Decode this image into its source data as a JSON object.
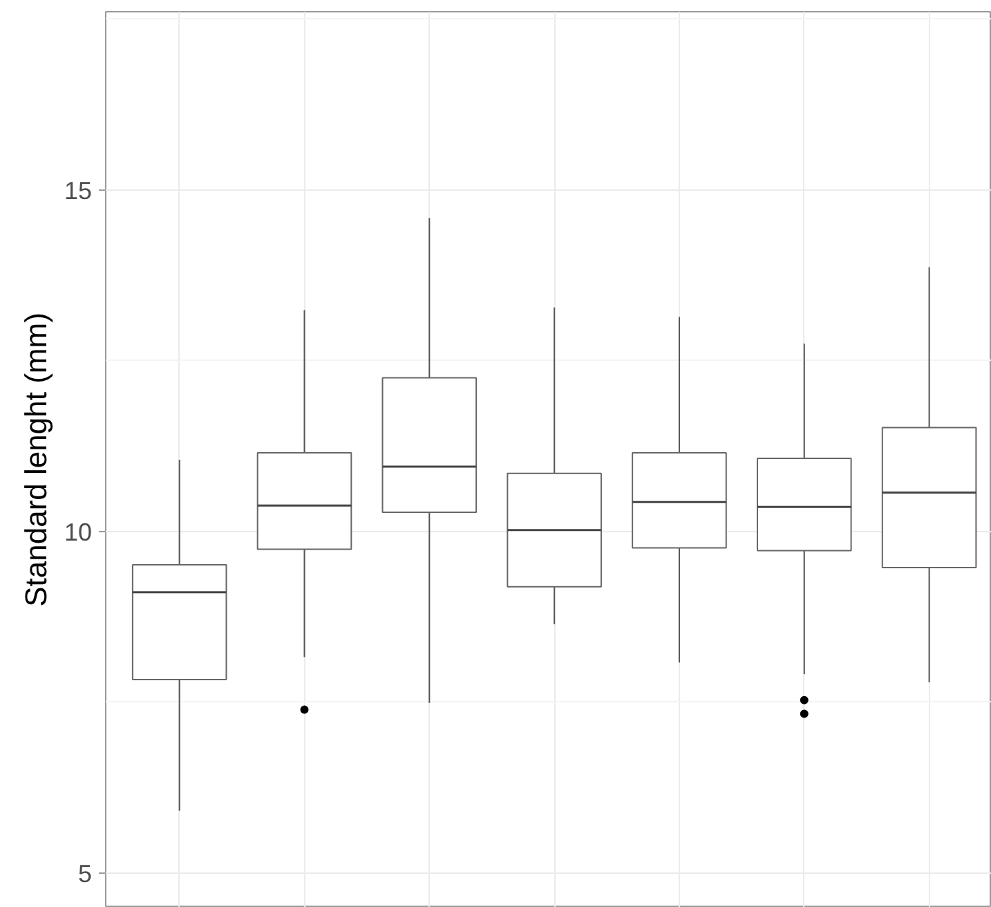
{
  "chart_data": {
    "type": "box",
    "ylabel": "Standard lenght (mm)",
    "categories": [
      null,
      null,
      null,
      null,
      null,
      null,
      null
    ],
    "boxes": [
      {
        "low": 5.91,
        "q1": 7.83,
        "median": 9.11,
        "q3": 9.51,
        "high": 11.05
      },
      {
        "low": 8.16,
        "q1": 9.74,
        "median": 10.38,
        "q3": 11.15,
        "high": 13.24,
        "outliers": [
          7.39
        ]
      },
      {
        "low": 7.49,
        "q1": 10.28,
        "median": 10.95,
        "q3": 12.25,
        "high": 14.59
      },
      {
        "low": 8.64,
        "q1": 9.19,
        "median": 10.02,
        "q3": 10.85,
        "high": 13.28
      },
      {
        "low": 8.08,
        "q1": 9.76,
        "median": 10.43,
        "q3": 11.15,
        "high": 13.14
      },
      {
        "low": 7.91,
        "q1": 9.72,
        "median": 10.36,
        "q3": 11.07,
        "high": 12.75,
        "outliers": [
          7.53,
          7.33
        ]
      },
      {
        "low": 7.79,
        "q1": 9.47,
        "median": 10.57,
        "q3": 11.52,
        "high": 13.87
      }
    ],
    "ylim": [
      4.49,
      17.61
    ],
    "yticks": [
      5,
      10,
      15
    ],
    "grid": true,
    "tick_labels": "y"
  }
}
